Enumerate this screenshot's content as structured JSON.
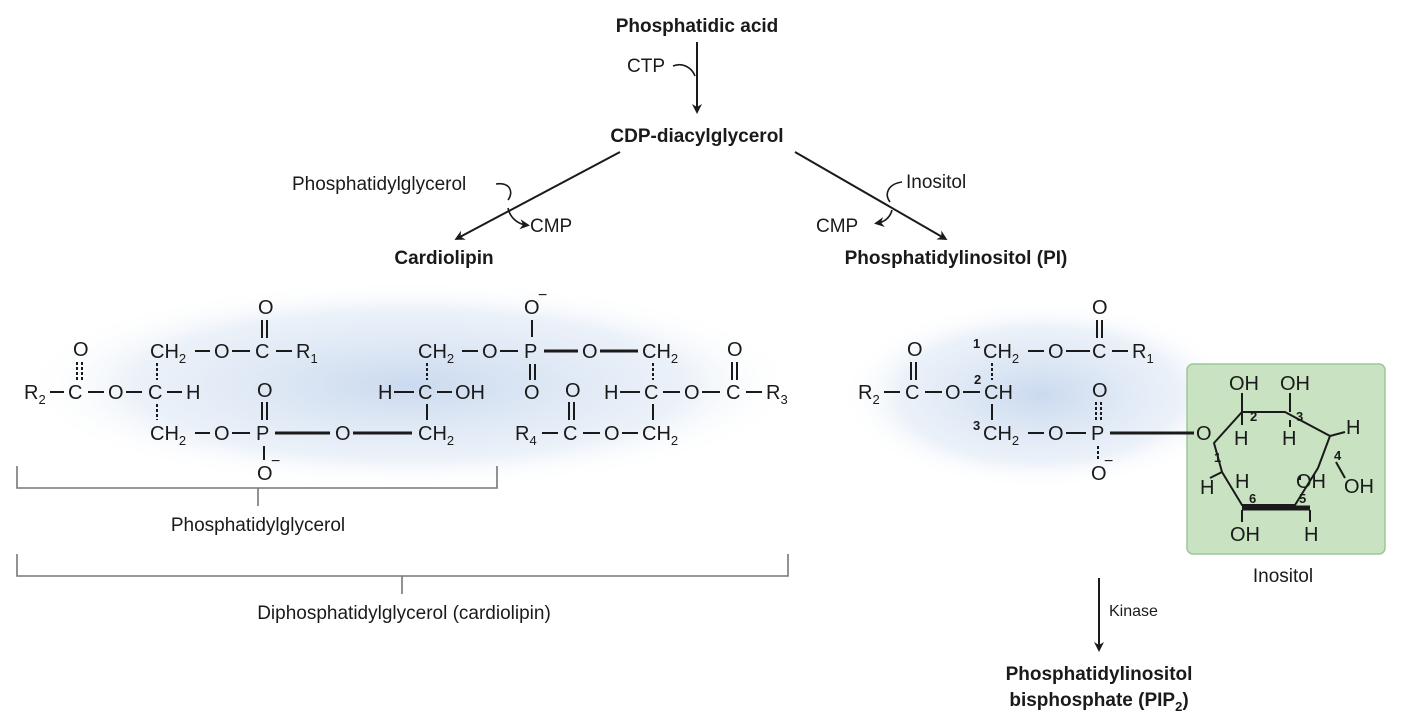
{
  "pathway": {
    "phosphatidic_acid": "Phosphatidic acid",
    "ctp": "CTP",
    "cdp_dag": "CDP-diacylglycerol",
    "phosphatidylglycerol_in": "Phosphatidylglycerol",
    "cmp_left": "CMP",
    "cardiolipin": "Cardiolipin",
    "inositol_in": "Inositol",
    "cmp_right": "CMP",
    "pi": "Phosphatidylinositol (PI)",
    "kinase": "Kinase",
    "pip2_line1": "Phosphatidylinositol",
    "pip2_line2_main": "bisphosphate (PIP",
    "pip2_sub": "2",
    "pip2_close": ")"
  },
  "brackets": {
    "phosphatidylglycerol": "Phosphatidylglycerol",
    "diphosphatidylglycerol": "Diphosphatidylglycerol (cardiolipin)"
  },
  "inositol_box": {
    "label": "Inositol",
    "color": "#c9e3c2",
    "border": "#9cc79a"
  },
  "colors": {
    "glow": "#c8d8ee"
  },
  "chem": {
    "O": "O",
    "C": "C",
    "H": "H",
    "P": "P",
    "OH": "OH",
    "CH": "CH",
    "CH2": "CH",
    "sub2": "2",
    "Ominus": "O",
    "minus": "−",
    "R": "R",
    "r1": "1",
    "r2": "2",
    "r3": "3",
    "r4": "4",
    "dash": "–",
    "n1": "1",
    "n2": "2",
    "n3": "3",
    "n4": "4",
    "n5": "5",
    "n6": "6"
  }
}
